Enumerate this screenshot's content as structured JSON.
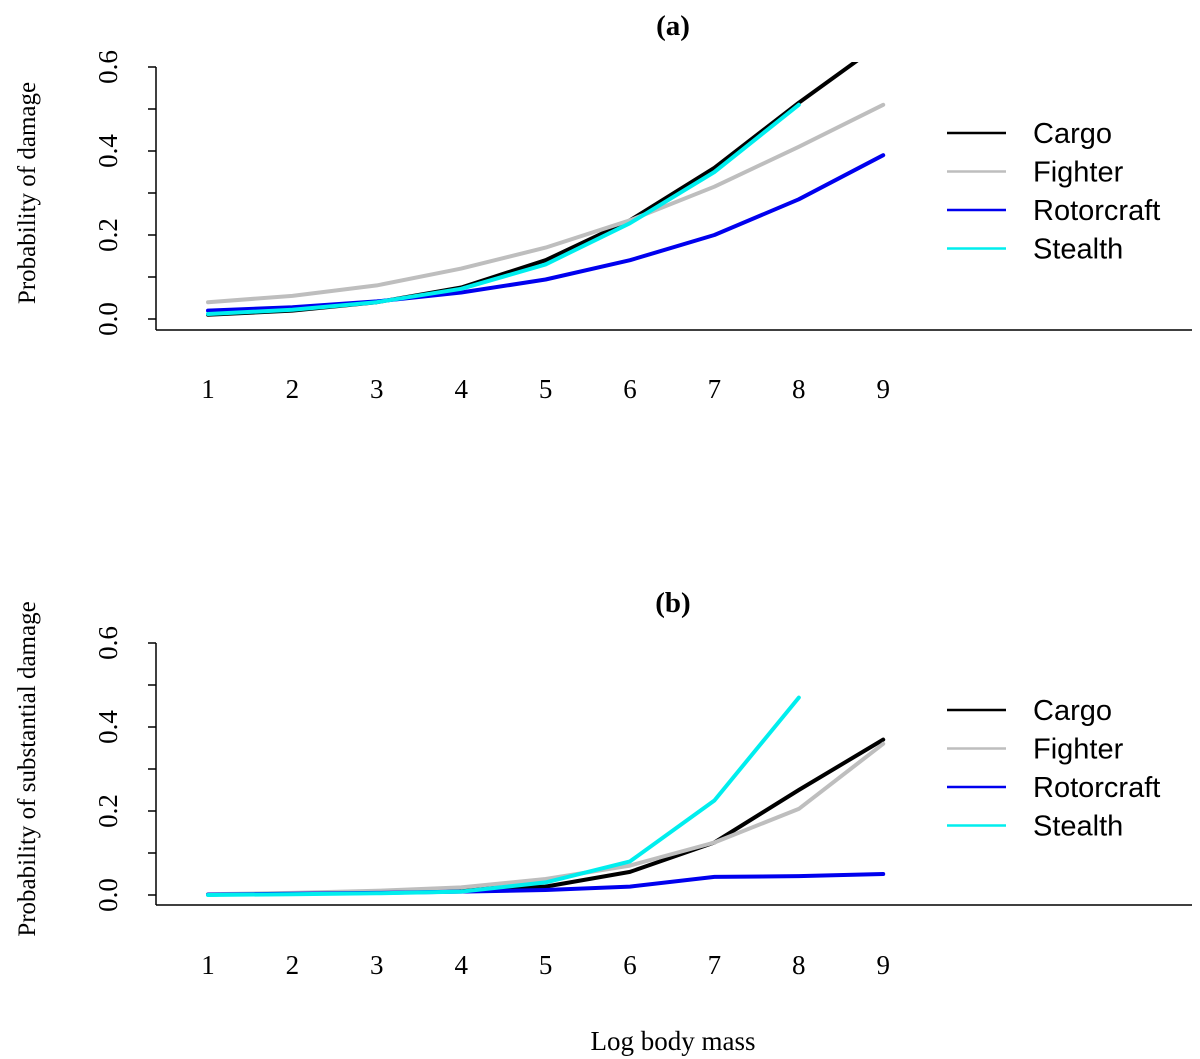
{
  "figure": {
    "xlabel": "Log body mass"
  },
  "chart_data": [
    {
      "type": "line",
      "title": "(a)",
      "xlabel": "",
      "ylabel": "Probability of damage",
      "x": [
        1,
        2,
        3,
        4,
        5,
        6,
        7,
        8,
        9
      ],
      "xticks": [
        "1",
        "2",
        "3",
        "4",
        "5",
        "6",
        "7",
        "8",
        "9"
      ],
      "ylim": [
        0,
        0.6
      ],
      "yticks": [
        "0.0",
        "0.2",
        "0.4",
        "0.6"
      ],
      "grid": false,
      "legend_position": "right",
      "series": [
        {
          "name": "Cargo",
          "color": "#000000",
          "values": [
            0.01,
            0.02,
            0.04,
            0.075,
            0.14,
            0.235,
            0.36,
            0.515,
            0.66
          ]
        },
        {
          "name": "Fighter",
          "color": "#bebebe",
          "values": [
            0.04,
            0.055,
            0.08,
            0.12,
            0.17,
            0.235,
            0.315,
            0.41,
            0.51
          ]
        },
        {
          "name": "Rotorcraft",
          "color": "#0000ee",
          "values": [
            0.02,
            0.028,
            0.042,
            0.063,
            0.094,
            0.14,
            0.2,
            0.285,
            0.39
          ]
        },
        {
          "name": "Stealth",
          "color": "#00eeee",
          "values": [
            0.012,
            0.022,
            0.04,
            0.072,
            0.13,
            0.228,
            0.35,
            0.51,
            null
          ]
        }
      ]
    },
    {
      "type": "line",
      "title": "(b)",
      "xlabel": "",
      "ylabel": "Probability of substantial damage",
      "x": [
        1,
        2,
        3,
        4,
        5,
        6,
        7,
        8,
        9
      ],
      "xticks": [
        "1",
        "2",
        "3",
        "4",
        "5",
        "6",
        "7",
        "8",
        "9"
      ],
      "ylim": [
        0,
        0.6
      ],
      "yticks": [
        "0.0",
        "0.2",
        "0.4",
        "0.6"
      ],
      "grid": false,
      "legend_position": "right",
      "series": [
        {
          "name": "Cargo",
          "color": "#000000",
          "values": [
            0.001,
            0.003,
            0.008,
            0.015,
            0.02,
            0.055,
            0.125,
            0.25,
            0.37
          ]
        },
        {
          "name": "Fighter",
          "color": "#bebebe",
          "values": [
            0.002,
            0.005,
            0.01,
            0.018,
            0.038,
            0.07,
            0.125,
            0.205,
            0.36
          ]
        },
        {
          "name": "Rotorcraft",
          "color": "#0000ee",
          "values": [
            0.001,
            0.003,
            0.005,
            0.008,
            0.012,
            0.02,
            0.043,
            0.045,
            0.05
          ]
        },
        {
          "name": "Stealth",
          "color": "#00eeee",
          "values": [
            0.0,
            0.002,
            0.004,
            0.008,
            0.03,
            0.08,
            0.225,
            0.47,
            null
          ]
        }
      ]
    }
  ]
}
